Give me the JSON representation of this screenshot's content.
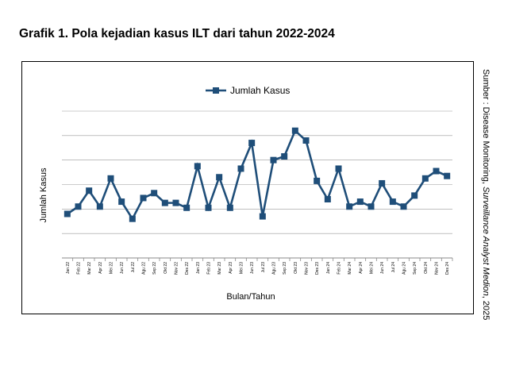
{
  "title": "Grafik 1. Pola kejadian kasus ILT dari tahun 2022-2024",
  "source": {
    "prefix": "Sumber : Disease Monitoring, ",
    "italic": "Surveillance Analyst Medion",
    "suffix": ", 2025"
  },
  "colors": {
    "line": "#1f4e79",
    "marker": "#1f4e79",
    "grid": "#999999",
    "frame": "#000000"
  },
  "chart_data": {
    "type": "line",
    "title": "",
    "xlabel": "Bulan/Tahun",
    "ylabel": "Jumlah Kasus",
    "legend": {
      "position": "top-center",
      "marker": "square"
    },
    "grid": "horizontal",
    "y_tick_labels_shown": false,
    "ylim": [
      0,
      12
    ],
    "categories": [
      "Jan 22",
      "Feb 22",
      "Mar 22",
      "Apr 22",
      "Mei 22",
      "Jun 22",
      "Jul 22",
      "Agu 22",
      "Sep 22",
      "Okt 22",
      "Nov 22",
      "Des 22",
      "Jan 23",
      "Feb 23",
      "Mar 23",
      "Apr 23",
      "Mei 23",
      "Jun 23",
      "Jul 23",
      "Agu 23",
      "Sep 23",
      "Okt 23",
      "Nov 23",
      "Des 23",
      "Jan 24",
      "Feb 24",
      "Mar 24",
      "Apr 24",
      "Mei 24",
      "Jun 24",
      "Jul 24",
      "Agu 24",
      "Sep 24",
      "Okt 24",
      "Nov 24",
      "Des 24"
    ],
    "series": [
      {
        "name": "Jumlah Kasus",
        "values": [
          3.6,
          4.2,
          5.5,
          4.2,
          6.5,
          4.6,
          3.2,
          4.9,
          5.3,
          4.5,
          4.5,
          4.1,
          7.5,
          4.1,
          6.6,
          4.1,
          7.3,
          9.4,
          3.4,
          8.0,
          8.3,
          10.4,
          9.6,
          6.3,
          4.8,
          7.3,
          4.2,
          4.6,
          4.2,
          6.1,
          4.6,
          4.2,
          5.1,
          6.5,
          7.1,
          6.7
        ]
      }
    ]
  }
}
